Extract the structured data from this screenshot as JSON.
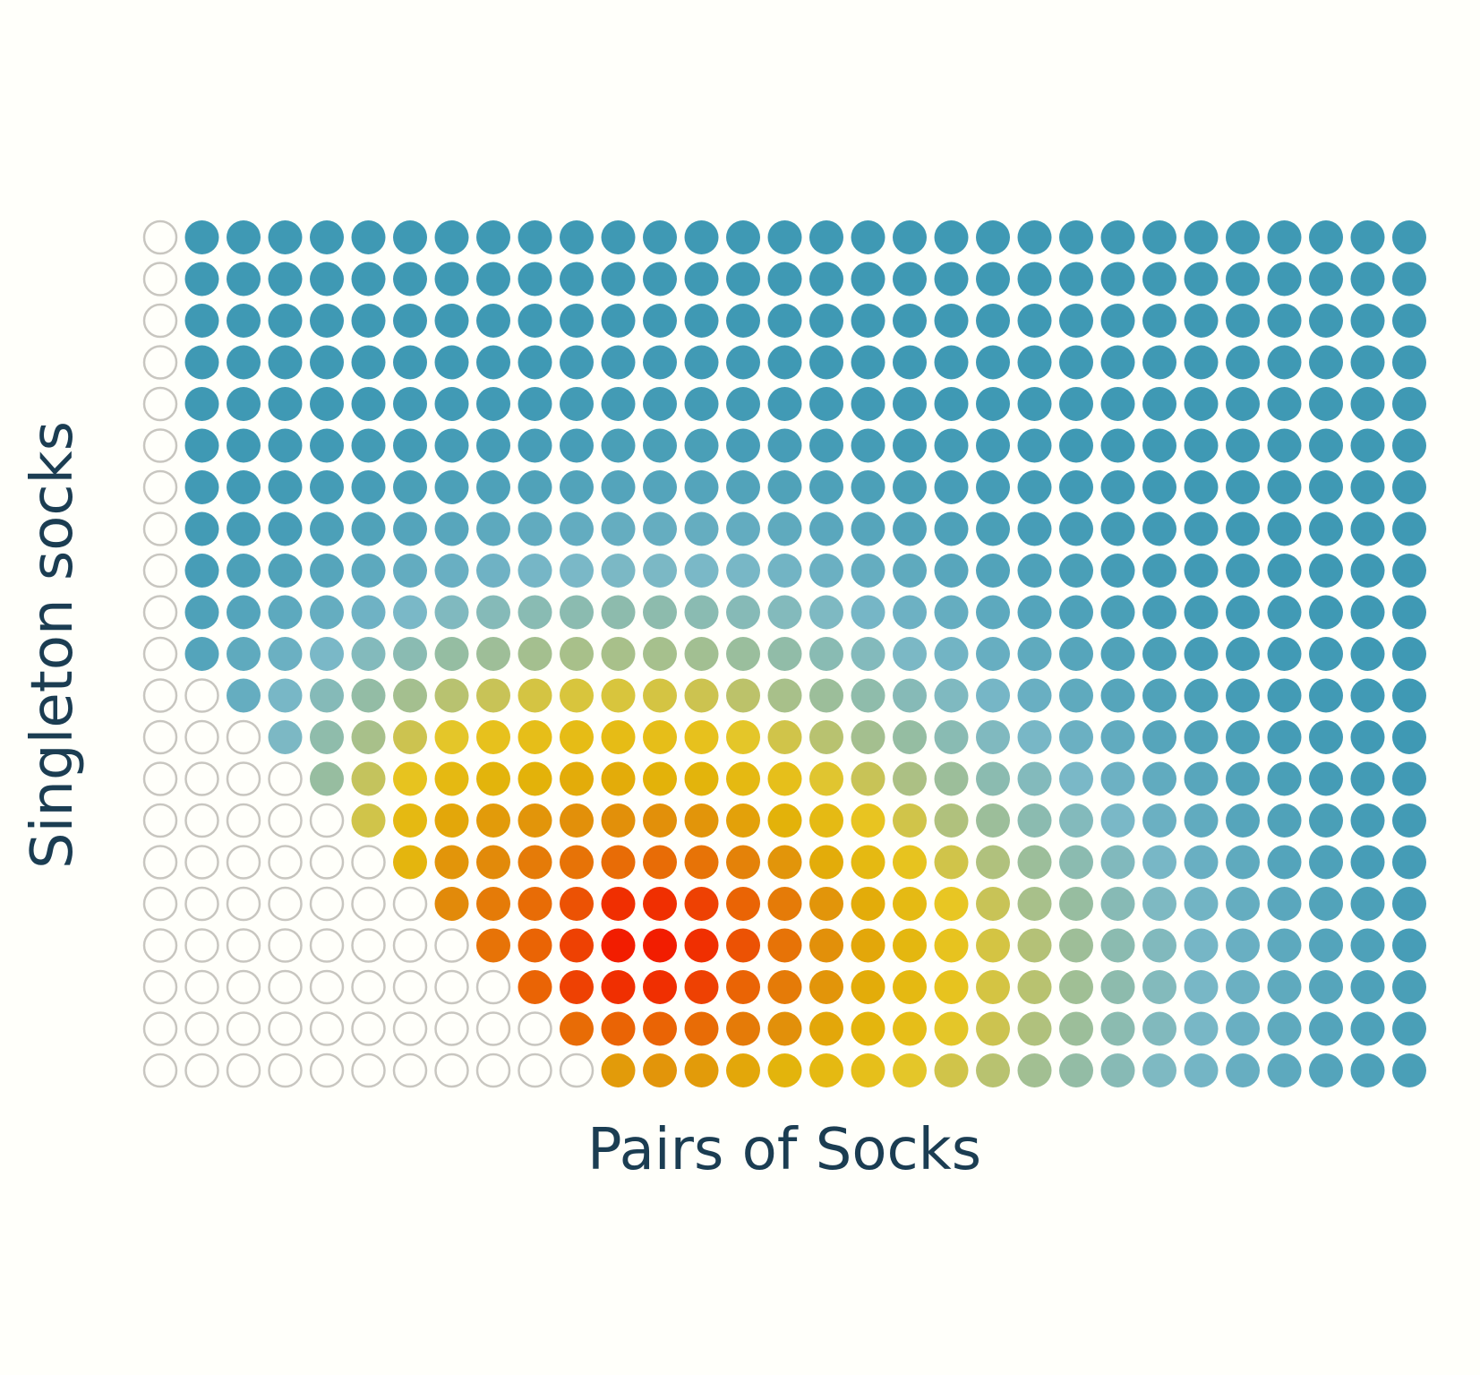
{
  "chart_data": {
    "type": "heatmap",
    "xlabel": "Pairs of Socks",
    "ylabel": "Singleton socks",
    "columns": 31,
    "rows": 21,
    "grid": false,
    "colors": {
      "empty_stroke": "#c8c6c0",
      "background": "#fffffa",
      "low": "#3f99b4",
      "mid_teal": "#7ab8c7",
      "mid_green": "#a8c08a",
      "yellow": "#e8c623",
      "orange": "#e28a0a",
      "high": "#f21d00",
      "label": "#1b3d52"
    },
    "row_first_filled_column": [
      1,
      1,
      1,
      1,
      1,
      1,
      1,
      1,
      1,
      1,
      1,
      2,
      3,
      4,
      5,
      6,
      7,
      8,
      9,
      10,
      11
    ],
    "values": [
      [
        0.0,
        0.0,
        0.0,
        0.0,
        0.0,
        0.0,
        0.0,
        0.0,
        0.0,
        0.0,
        0.0,
        0.0,
        0.0,
        0.0,
        0.0,
        0.0,
        0.0,
        0.0,
        0.0,
        0.0,
        0.0,
        0.0,
        0.0,
        0.0,
        0.0,
        0.0,
        0.0,
        0.0,
        0.0,
        0.0
      ],
      [
        0.0,
        0.0,
        0.0,
        0.0,
        0.0,
        0.0,
        0.0,
        0.0,
        0.0,
        0.0,
        0.0,
        0.0,
        0.0,
        0.0,
        0.0,
        0.0,
        0.0,
        0.0,
        0.0,
        0.0,
        0.0,
        0.0,
        0.0,
        0.0,
        0.0,
        0.0,
        0.0,
        0.0,
        0.0,
        0.0
      ],
      [
        0.0,
        0.0,
        0.0,
        0.0,
        0.0,
        0.0,
        0.0,
        0.0,
        0.0,
        0.0,
        0.0,
        0.0,
        0.0,
        0.0,
        0.0,
        0.0,
        0.0,
        0.0,
        0.0,
        0.0,
        0.0,
        0.0,
        0.0,
        0.0,
        0.0,
        0.0,
        0.0,
        0.0,
        0.0,
        0.0
      ],
      [
        0.0,
        0.0,
        0.0,
        0.0,
        0.0,
        0.0,
        0.0,
        0.0,
        0.0,
        0.01,
        0.01,
        0.01,
        0.01,
        0.01,
        0.0,
        0.0,
        0.0,
        0.0,
        0.0,
        0.0,
        0.0,
        0.0,
        0.0,
        0.0,
        0.0,
        0.0,
        0.0,
        0.0,
        0.0,
        0.0
      ],
      [
        0.0,
        0.0,
        0.0,
        0.0,
        0.0,
        0.01,
        0.01,
        0.01,
        0.01,
        0.02,
        0.02,
        0.02,
        0.02,
        0.02,
        0.01,
        0.01,
        0.01,
        0.01,
        0.0,
        0.0,
        0.0,
        0.0,
        0.0,
        0.0,
        0.0,
        0.0,
        0.0,
        0.0,
        0.0,
        0.0
      ],
      [
        0.0,
        0.0,
        0.01,
        0.01,
        0.02,
        0.02,
        0.03,
        0.03,
        0.04,
        0.04,
        0.05,
        0.05,
        0.05,
        0.04,
        0.04,
        0.03,
        0.03,
        0.02,
        0.02,
        0.01,
        0.01,
        0.0,
        0.0,
        0.0,
        0.0,
        0.0,
        0.0,
        0.0,
        0.0,
        0.0
      ],
      [
        0.01,
        0.01,
        0.02,
        0.03,
        0.04,
        0.05,
        0.06,
        0.07,
        0.08,
        0.09,
        0.1,
        0.1,
        0.1,
        0.09,
        0.08,
        0.07,
        0.06,
        0.05,
        0.04,
        0.03,
        0.02,
        0.01,
        0.01,
        0.0,
        0.0,
        0.0,
        0.0,
        0.0,
        0.0,
        0.0
      ],
      [
        0.02,
        0.03,
        0.04,
        0.06,
        0.08,
        0.1,
        0.12,
        0.14,
        0.16,
        0.17,
        0.18,
        0.18,
        0.18,
        0.17,
        0.15,
        0.13,
        0.11,
        0.09,
        0.07,
        0.05,
        0.04,
        0.03,
        0.02,
        0.01,
        0.01,
        0.0,
        0.0,
        0.0,
        0.0,
        0.0
      ],
      [
        0.04,
        0.06,
        0.08,
        0.11,
        0.14,
        0.17,
        0.2,
        0.23,
        0.26,
        0.28,
        0.29,
        0.29,
        0.28,
        0.27,
        0.24,
        0.21,
        0.18,
        0.15,
        0.12,
        0.09,
        0.07,
        0.05,
        0.03,
        0.02,
        0.01,
        0.01,
        0.0,
        0.0,
        0.0,
        0.0
      ],
      [
        0.07,
        0.1,
        0.14,
        0.18,
        0.23,
        0.28,
        0.33,
        0.37,
        0.4,
        0.42,
        0.43,
        0.43,
        0.41,
        0.38,
        0.35,
        0.31,
        0.26,
        0.22,
        0.18,
        0.14,
        0.1,
        0.07,
        0.05,
        0.03,
        0.02,
        0.01,
        0.01,
        0.0,
        0.0,
        0.0
      ],
      [
        0.1,
        0.15,
        0.21,
        0.28,
        0.35,
        0.41,
        0.47,
        0.51,
        0.54,
        0.56,
        0.56,
        0.55,
        0.53,
        0.49,
        0.45,
        0.4,
        0.35,
        0.29,
        0.24,
        0.19,
        0.15,
        0.11,
        0.08,
        0.05,
        0.03,
        0.02,
        0.01,
        0.01,
        0.0,
        0.0
      ],
      [
        0.0,
        0.18,
        0.27,
        0.37,
        0.46,
        0.54,
        0.6,
        0.64,
        0.67,
        0.68,
        0.68,
        0.67,
        0.65,
        0.61,
        0.56,
        0.5,
        0.44,
        0.38,
        0.32,
        0.26,
        0.2,
        0.15,
        0.11,
        0.08,
        0.05,
        0.03,
        0.02,
        0.01,
        0.01,
        0.0
      ],
      [
        0.0,
        0.0,
        0.3,
        0.44,
        0.56,
        0.65,
        0.71,
        0.75,
        0.77,
        0.78,
        0.78,
        0.77,
        0.75,
        0.71,
        0.66,
        0.6,
        0.54,
        0.47,
        0.4,
        0.33,
        0.27,
        0.21,
        0.16,
        0.11,
        0.08,
        0.05,
        0.03,
        0.02,
        0.01,
        0.0
      ],
      [
        0.0,
        0.0,
        0.0,
        0.48,
        0.63,
        0.74,
        0.8,
        0.83,
        0.84,
        0.85,
        0.85,
        0.84,
        0.83,
        0.8,
        0.76,
        0.7,
        0.64,
        0.57,
        0.5,
        0.42,
        0.35,
        0.28,
        0.22,
        0.16,
        0.12,
        0.08,
        0.05,
        0.03,
        0.02,
        0.01
      ],
      [
        0.0,
        0.0,
        0.0,
        0.0,
        0.66,
        0.8,
        0.86,
        0.88,
        0.89,
        0.9,
        0.9,
        0.9,
        0.89,
        0.87,
        0.84,
        0.79,
        0.73,
        0.66,
        0.58,
        0.5,
        0.42,
        0.35,
        0.28,
        0.21,
        0.16,
        0.11,
        0.08,
        0.05,
        0.03,
        0.02
      ],
      [
        0.0,
        0.0,
        0.0,
        0.0,
        0.0,
        0.82,
        0.89,
        0.91,
        0.93,
        0.94,
        0.95,
        0.95,
        0.94,
        0.92,
        0.89,
        0.85,
        0.8,
        0.74,
        0.66,
        0.58,
        0.5,
        0.42,
        0.34,
        0.27,
        0.2,
        0.15,
        0.1,
        0.07,
        0.04,
        0.03
      ],
      [
        0.0,
        0.0,
        0.0,
        0.0,
        0.0,
        0.0,
        0.91,
        0.93,
        0.95,
        0.97,
        0.99,
        0.99,
        0.98,
        0.96,
        0.93,
        0.89,
        0.85,
        0.79,
        0.72,
        0.64,
        0.56,
        0.48,
        0.39,
        0.31,
        0.24,
        0.18,
        0.13,
        0.09,
        0.06,
        0.04
      ],
      [
        0.0,
        0.0,
        0.0,
        0.0,
        0.0,
        0.0,
        0.0,
        0.94,
        0.96,
        0.98,
        1.0,
        1.0,
        0.99,
        0.97,
        0.94,
        0.9,
        0.86,
        0.81,
        0.74,
        0.67,
        0.59,
        0.51,
        0.42,
        0.34,
        0.26,
        0.2,
        0.14,
        0.1,
        0.07,
        0.04
      ],
      [
        0.0,
        0.0,
        0.0,
        0.0,
        0.0,
        0.0,
        0.0,
        0.0,
        0.96,
        0.98,
        0.99,
        0.99,
        0.98,
        0.96,
        0.93,
        0.89,
        0.85,
        0.8,
        0.74,
        0.67,
        0.6,
        0.52,
        0.43,
        0.35,
        0.27,
        0.21,
        0.15,
        0.11,
        0.07,
        0.05
      ],
      [
        0.0,
        0.0,
        0.0,
        0.0,
        0.0,
        0.0,
        0.0,
        0.0,
        0.0,
        0.95,
        0.96,
        0.96,
        0.95,
        0.93,
        0.9,
        0.86,
        0.82,
        0.77,
        0.71,
        0.65,
        0.58,
        0.5,
        0.42,
        0.34,
        0.27,
        0.2,
        0.15,
        0.1,
        0.07,
        0.05
      ],
      [
        0.0,
        0.0,
        0.0,
        0.0,
        0.0,
        0.0,
        0.0,
        0.0,
        0.0,
        0.0,
        0.88,
        0.89,
        0.88,
        0.86,
        0.83,
        0.8,
        0.76,
        0.71,
        0.66,
        0.6,
        0.53,
        0.46,
        0.39,
        0.31,
        0.25,
        0.19,
        0.14,
        0.1,
        0.07,
        0.05
      ]
    ]
  }
}
